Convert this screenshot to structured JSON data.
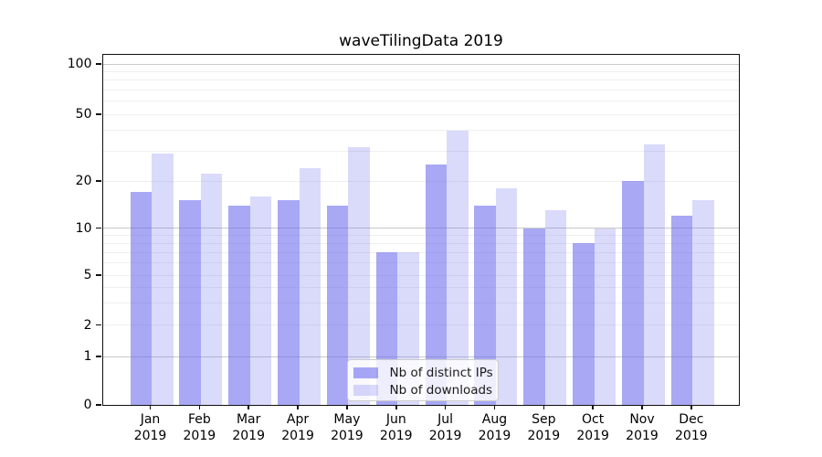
{
  "chart_data": {
    "type": "bar",
    "title": "waveTilingData 2019",
    "categories": [
      "Jan",
      "Feb",
      "Mar",
      "Apr",
      "May",
      "Jun",
      "Jul",
      "Aug",
      "Sep",
      "Oct",
      "Nov",
      "Dec"
    ],
    "x_axis": {
      "year": "2019"
    },
    "y_axis": {
      "scale": "log-with-zero-baseline",
      "ylim": [
        0,
        115
      ],
      "tick_labels": [
        "100",
        "50",
        "20",
        "10",
        "5",
        "2",
        "1",
        "0"
      ],
      "tick_values": [
        100,
        50,
        20,
        10,
        5,
        2,
        1,
        0
      ],
      "major_gridlines": [
        1,
        10,
        100
      ],
      "minor_gridlines": [
        2,
        3,
        4,
        5,
        6,
        7,
        8,
        9,
        20,
        30,
        40,
        50,
        60,
        70,
        80,
        90
      ]
    },
    "grid": true,
    "legend_position": "lower center",
    "series": [
      {
        "name": "Nb of distinct IPs",
        "color": "rgba(102,102,238,0.57)",
        "values": [
          17,
          15,
          14,
          15,
          14,
          7,
          25,
          14,
          10,
          8,
          20,
          12
        ]
      },
      {
        "name": "Nb of downloads",
        "color": "rgba(102,102,238,0.24)",
        "values": [
          29,
          22,
          16,
          24,
          32,
          7,
          40,
          18,
          13,
          10,
          33,
          15
        ]
      }
    ]
  }
}
